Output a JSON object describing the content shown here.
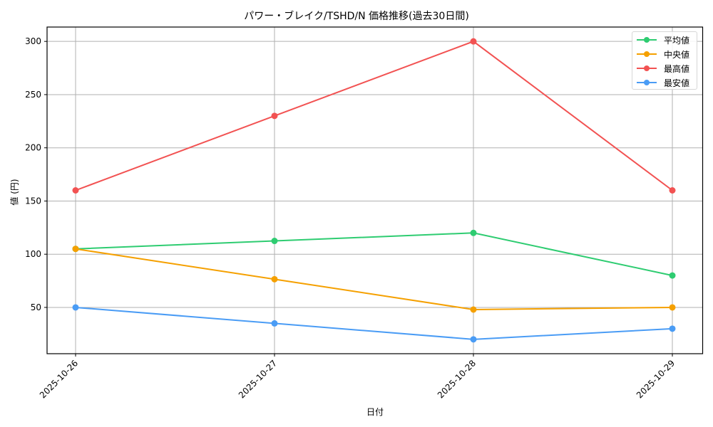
{
  "chart_data": {
    "type": "line",
    "title": "パワー・ブレイク/TSHD/N 価格推移(過去30日間)",
    "xlabel": "日付",
    "ylabel": "値 (円)",
    "categories": [
      "2025-10-26",
      "2025-10-27",
      "2025-10-28",
      "2025-10-29"
    ],
    "series": [
      {
        "name": "平均値",
        "color": "#2ecc71",
        "values": [
          105,
          112.5,
          120,
          80
        ]
      },
      {
        "name": "中央値",
        "color": "#f5a000",
        "values": [
          105,
          76.5,
          48,
          50
        ]
      },
      {
        "name": "最高値",
        "color": "#f25252",
        "values": [
          160,
          230,
          300,
          160
        ]
      },
      {
        "name": "最安値",
        "color": "#4a9cf5",
        "values": [
          50,
          35,
          20,
          30
        ]
      }
    ],
    "yticks": [
      50,
      100,
      150,
      200,
      250,
      300
    ],
    "ylim": [
      6.5,
      313.5
    ],
    "grid": true,
    "legend_position": "upper right",
    "x_tick_rotation": 45
  }
}
